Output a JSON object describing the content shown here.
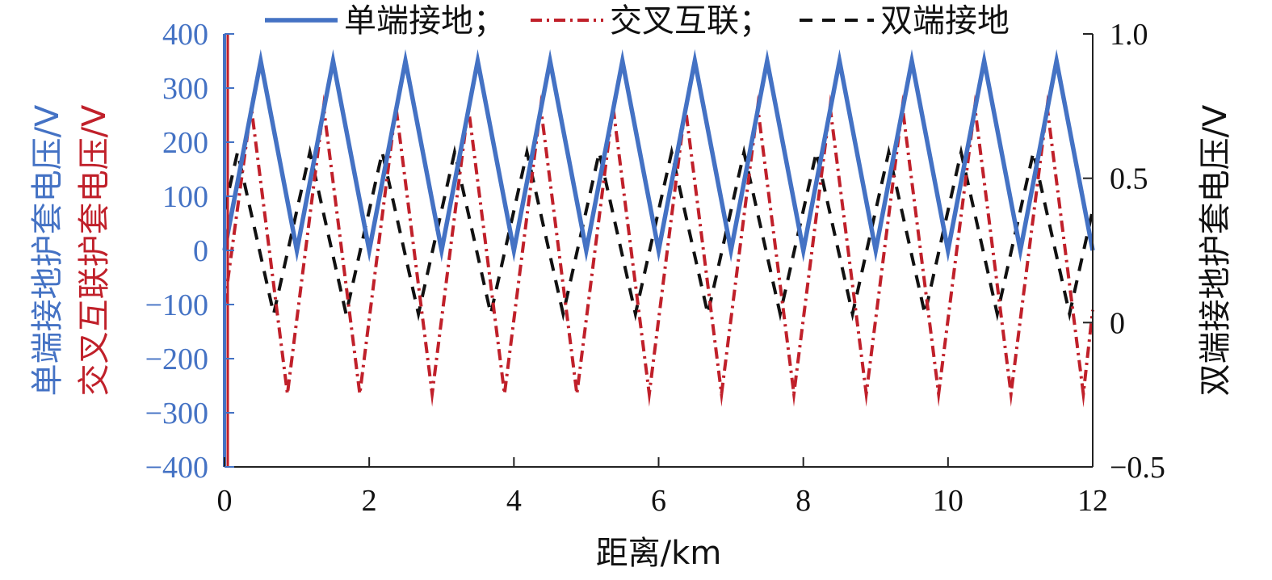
{
  "chart_data": {
    "type": "line",
    "title": "",
    "xlabel": "距离/km",
    "x_ticks": [
      "0",
      "2",
      "4",
      "6",
      "8",
      "10",
      "12"
    ],
    "xlim": [
      0,
      12
    ],
    "ylabel_left_1": "单端接地护套电压/V",
    "ylabel_left_2": "交叉互联护套电压/V",
    "ylabel_right": "双端接地护套电压/V",
    "ylim_left": [
      -400,
      400
    ],
    "y_ticks_left": [
      "400",
      "300",
      "200",
      "100",
      "0",
      "−100",
      "−200",
      "−300",
      "−400"
    ],
    "ylim_right": [
      -0.5,
      1.0
    ],
    "y_ticks_right": [
      "1.0",
      "0.5",
      "0",
      "−0.5"
    ],
    "grid": false,
    "legend_position": "top",
    "legend_separator": "；",
    "series": [
      {
        "name": "单端接地",
        "axis": "left-blue",
        "color": "#4472C4",
        "style": "solid",
        "x": [
          0,
          0.5,
          1,
          1.5,
          2,
          2.5,
          3,
          3.5,
          4,
          4.5,
          5,
          5.5,
          6,
          6.5,
          7,
          7.5,
          8,
          8.5,
          9,
          9.5,
          10,
          10.5,
          11,
          11.5,
          12
        ],
        "y": [
          0,
          350,
          0,
          350,
          0,
          350,
          0,
          350,
          0,
          350,
          0,
          350,
          0,
          350,
          0,
          350,
          0,
          350,
          0,
          350,
          0,
          350,
          0,
          350,
          0
        ]
      },
      {
        "name": "交叉互联",
        "axis": "left-red",
        "color": "#C0202A",
        "style": "dash-dot",
        "x": [
          0,
          0.37,
          0.87,
          1.37,
          1.87,
          2.37,
          2.87,
          3.37,
          3.87,
          4.37,
          4.87,
          5.37,
          5.87,
          6.37,
          6.87,
          7.37,
          7.87,
          8.37,
          8.87,
          9.37,
          9.87,
          10.37,
          10.87,
          11.37,
          11.87,
          12
        ],
        "y": [
          -100,
          265,
          -265,
          265,
          -265,
          265,
          -265,
          265,
          -265,
          265,
          -265,
          265,
          -265,
          265,
          -265,
          265,
          -265,
          265,
          -265,
          265,
          -265,
          265,
          -265,
          265,
          -265,
          -110
        ]
      },
      {
        "name": "双端接地",
        "axis": "right",
        "color": "#111111",
        "style": "dashed",
        "x": [
          0,
          0.18,
          0.68,
          1.18,
          1.68,
          2.18,
          2.68,
          3.18,
          3.68,
          4.18,
          4.68,
          5.18,
          5.68,
          6.18,
          6.68,
          7.18,
          7.68,
          8.18,
          8.68,
          9.18,
          9.68,
          10.18,
          10.68,
          11.18,
          11.68,
          12
        ],
        "y": [
          0.39,
          0.59,
          0.03,
          0.59,
          0.03,
          0.59,
          0.03,
          0.59,
          0.03,
          0.59,
          0.03,
          0.59,
          0.03,
          0.59,
          0.03,
          0.59,
          0.03,
          0.59,
          0.03,
          0.59,
          0.03,
          0.59,
          0.03,
          0.59,
          0.03,
          0.39
        ]
      }
    ]
  }
}
